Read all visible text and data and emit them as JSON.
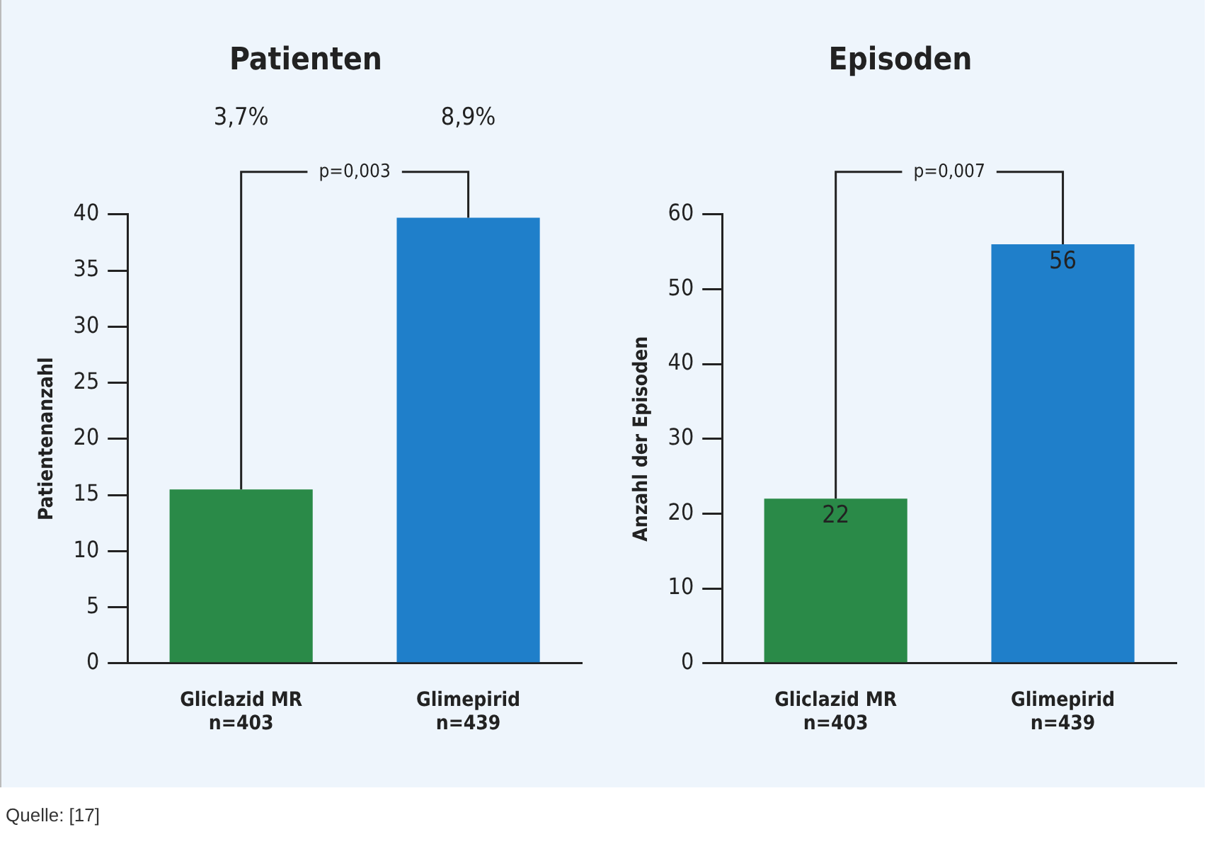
{
  "chart_data": [
    {
      "type": "bar",
      "title": "Patienten",
      "ylabel": "Patientenanzahl",
      "categories": [
        "Gliclazid MR\nn=403",
        "Glimepirid\nn=439"
      ],
      "values": [
        15.5,
        39.7
      ],
      "colors": [
        "#2a8a48",
        "#1f7fca"
      ],
      "ylim": [
        0,
        40
      ],
      "yticks": [
        0,
        5,
        10,
        15,
        20,
        25,
        30,
        35,
        40
      ],
      "grid": false,
      "legend": false,
      "annotations": [
        {
          "text": "p=0,003",
          "x": "Glimepirid\nn=439",
          "y": 39.7
        },
        "3,7%",
        "8,9%",
        "Quelle: [17]"
      ]
    },
    {
      "type": "bar",
      "title": "Episoden",
      "ylabel": "Anzahl der Episoden",
      "categories": [
        "Gliclazid MR\nn=403",
        "Glimepirid\nn=439"
      ],
      "values": [
        22,
        56
      ],
      "colors": [
        "#2a8a48",
        "#1f7fca"
      ],
      "data_labels": true,
      "ylim": [
        0,
        60
      ],
      "yticks": [
        0,
        10,
        20,
        30,
        40,
        50,
        60
      ],
      "grid": false,
      "legend": false,
      "annotations": [
        {
          "text": "p=0,007",
          "x": "Glimepirid\nn=439",
          "y": 56
        }
      ]
    }
  ]
}
